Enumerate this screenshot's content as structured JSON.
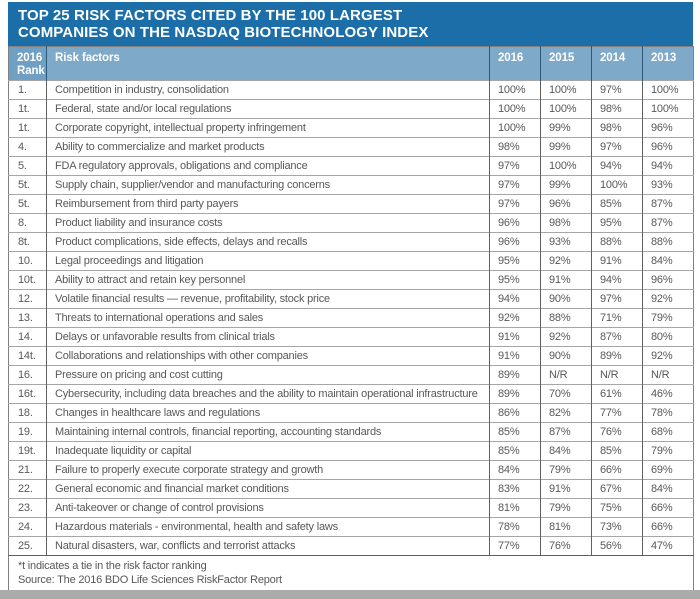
{
  "colors": {
    "title_bar": "#1b6ea8",
    "header_fill": "#7fa9c9",
    "rank_header_fill": "#6f9fc2",
    "header_divider": "#2f5876",
    "body_text": "#57585a",
    "grid_light": "#a6a6a6",
    "grid_dark": "#606060",
    "outer_border": "#808080",
    "bottom_strip": "#ababab"
  },
  "chart_data": {
    "type": "table",
    "title": "TOP 25 RISK FACTORS CITED BY THE 100 LARGEST COMPANIES ON THE NASDAQ BIOTECHNOLOGY INDEX",
    "title_lines": [
      "TOP 25 RISK FACTORS CITED BY THE 100 LARGEST",
      "COMPANIES ON THE NASDAQ BIOTECHNOLOGY INDEX"
    ],
    "header": {
      "rank": [
        "2016",
        "Rank"
      ],
      "factor": "Risk factors",
      "years": [
        "2016",
        "2015",
        "2014",
        "2013"
      ]
    },
    "rows": [
      {
        "rank": "1.",
        "factor": "Competition in industry, consolidation",
        "values": [
          "100%",
          "100%",
          "97%",
          "100%"
        ]
      },
      {
        "rank": "1t.",
        "factor": "Federal, state and/or local regulations",
        "values": [
          "100%",
          "100%",
          "98%",
          "100%"
        ]
      },
      {
        "rank": "1t.",
        "factor": "Corporate copyright, intellectual property infringement",
        "values": [
          "100%",
          "99%",
          "98%",
          "96%"
        ]
      },
      {
        "rank": "4.",
        "factor": "Ability to commercialize and market products",
        "values": [
          "98%",
          "99%",
          "97%",
          "96%"
        ]
      },
      {
        "rank": "5.",
        "factor": "FDA regulatory approvals, obligations and compliance",
        "values": [
          "97%",
          "100%",
          "94%",
          "94%"
        ]
      },
      {
        "rank": "5t.",
        "factor": "Supply chain, supplier/vendor and manufacturing concerns",
        "values": [
          "97%",
          "99%",
          "100%",
          "93%"
        ]
      },
      {
        "rank": "5t.",
        "factor": "Reimbursement from third party payers",
        "values": [
          "97%",
          "96%",
          "85%",
          "87%"
        ]
      },
      {
        "rank": "8.",
        "factor": "Product liability and insurance costs",
        "values": [
          "96%",
          "98%",
          "95%",
          "87%"
        ]
      },
      {
        "rank": "8t.",
        "factor": "Product complications, side effects, delays and recalls",
        "values": [
          "96%",
          "93%",
          "88%",
          "88%"
        ]
      },
      {
        "rank": "10.",
        "factor": "Legal proceedings and litigation",
        "values": [
          "95%",
          "92%",
          "91%",
          "84%"
        ]
      },
      {
        "rank": "10t.",
        "factor": "Ability to attract and retain key personnel",
        "values": [
          "95%",
          "91%",
          "94%",
          "96%"
        ]
      },
      {
        "rank": "12.",
        "factor": "Volatile financial results — revenue, profitability, stock price",
        "values": [
          "94%",
          "90%",
          "97%",
          "92%"
        ]
      },
      {
        "rank": "13.",
        "factor": "Threats to international operations and sales",
        "values": [
          "92%",
          "88%",
          "71%",
          "79%"
        ]
      },
      {
        "rank": "14.",
        "factor": "Delays or unfavorable results from clinical trials",
        "values": [
          "91%",
          "92%",
          "87%",
          "80%"
        ]
      },
      {
        "rank": "14t.",
        "factor": "Collaborations and relationships with other companies",
        "values": [
          "91%",
          "90%",
          "89%",
          "92%"
        ]
      },
      {
        "rank": "16.",
        "factor": "Pressure on pricing and cost cutting",
        "values": [
          "89%",
          "N/R",
          "N/R",
          "N/R"
        ]
      },
      {
        "rank": "16t.",
        "factor": "Cybersecurity, including data breaches and the ability to maintain operational infrastructure",
        "values": [
          "89%",
          "70%",
          "61%",
          "46%"
        ]
      },
      {
        "rank": "18.",
        "factor": "Changes in healthcare laws and regulations",
        "values": [
          "86%",
          "82%",
          "77%",
          "78%"
        ]
      },
      {
        "rank": "19.",
        "factor": "Maintaining internal controls, financial reporting, accounting standards",
        "values": [
          "85%",
          "87%",
          "76%",
          "68%"
        ]
      },
      {
        "rank": "19t.",
        "factor": "Inadequate liquidity or capital",
        "values": [
          "85%",
          "84%",
          "85%",
          "79%"
        ]
      },
      {
        "rank": "21.",
        "factor": "Failure to properly execute corporate strategy and growth",
        "values": [
          "84%",
          "79%",
          "66%",
          "69%"
        ]
      },
      {
        "rank": "22.",
        "factor": "General economic and financial market conditions",
        "values": [
          "83%",
          "91%",
          "67%",
          "84%"
        ]
      },
      {
        "rank": "23.",
        "factor": "Anti-takeover or change of control provisions",
        "values": [
          "81%",
          "79%",
          "75%",
          "66%"
        ]
      },
      {
        "rank": "24.",
        "factor": "Hazardous materials - environmental, health and safety laws",
        "values": [
          "78%",
          "81%",
          "73%",
          "66%"
        ]
      },
      {
        "rank": "25.",
        "factor": "Natural disasters, war, conflicts and terrorist attacks",
        "values": [
          "77%",
          "76%",
          "56%",
          "47%"
        ]
      }
    ],
    "footnote": "*t indicates a tie in the risk factor ranking",
    "source": "Source: The 2016 BDO Life Sciences RiskFactor Report"
  }
}
